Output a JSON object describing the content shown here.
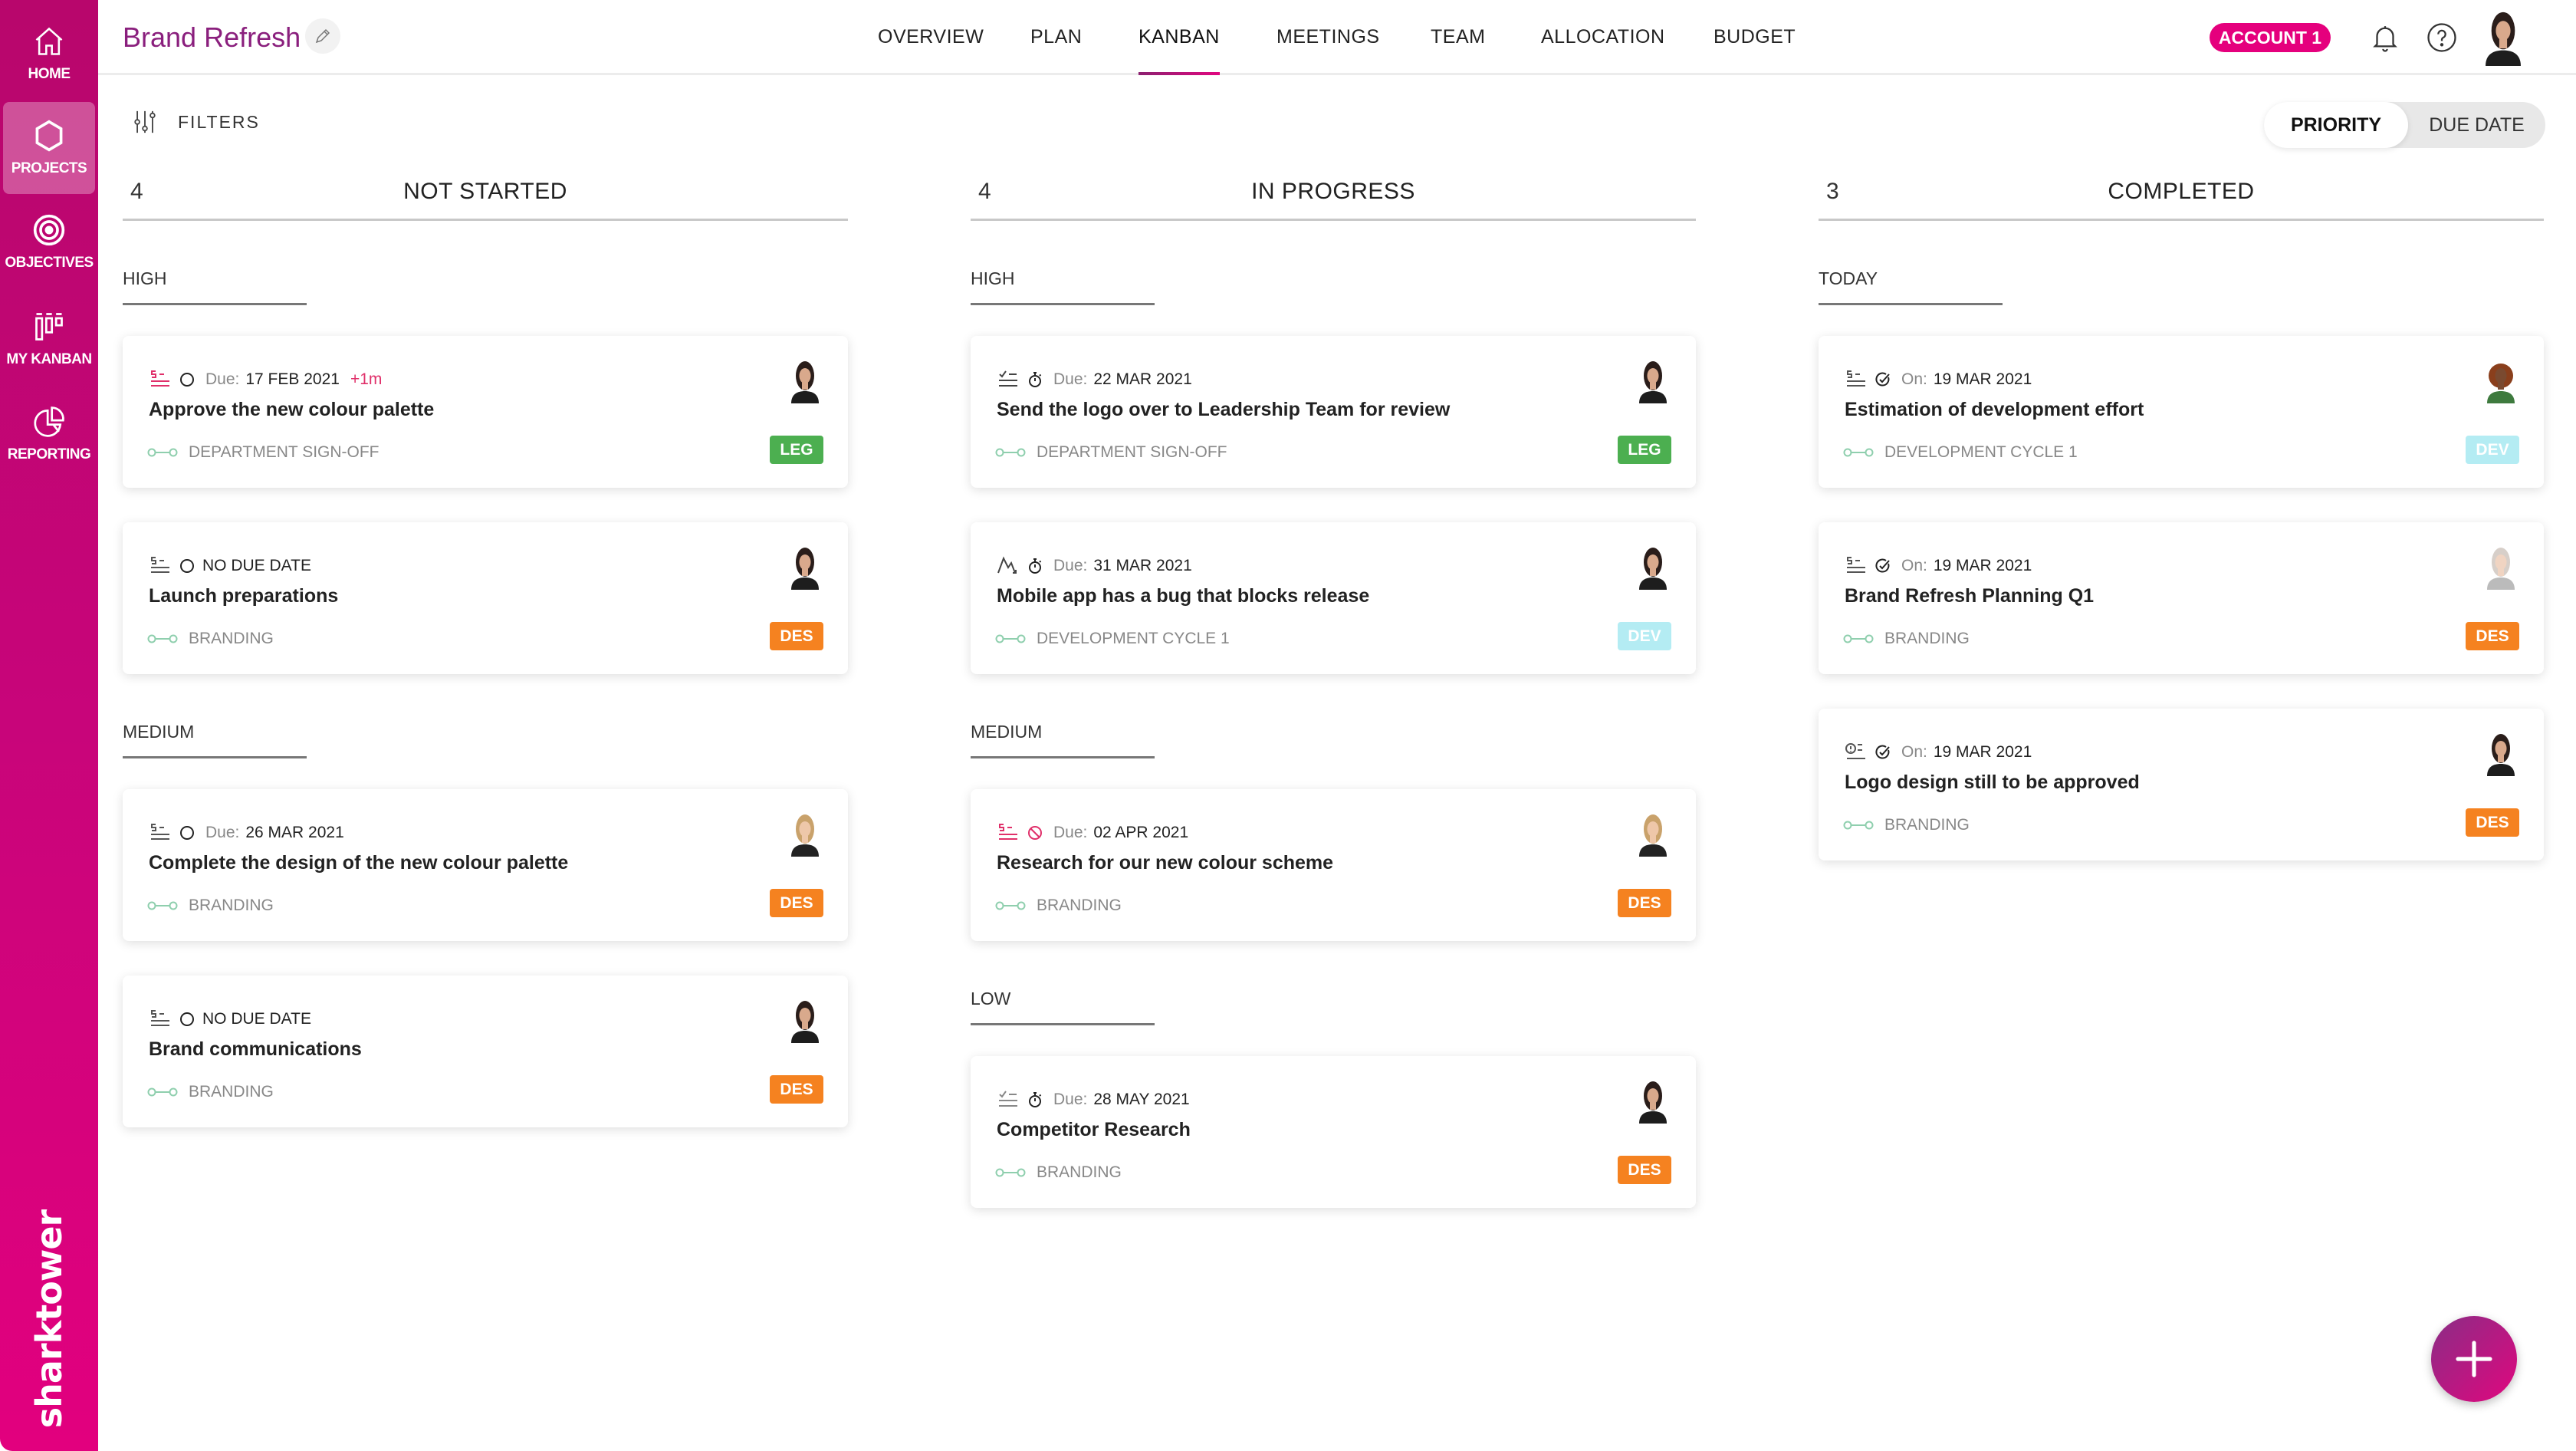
{
  "sidebar": {
    "items": [
      {
        "label": "HOME",
        "icon": "home-icon",
        "active": false
      },
      {
        "label": "PROJECTS",
        "icon": "hexagon-icon",
        "active": true
      },
      {
        "label": "OBJECTIVES",
        "icon": "target-icon",
        "active": false
      },
      {
        "label": "MY KANBAN",
        "icon": "kanban-icon",
        "active": false
      },
      {
        "label": "REPORTING",
        "icon": "pie-chart-icon",
        "active": false
      }
    ],
    "logo": "sharktower"
  },
  "header": {
    "title": "Brand Refresh",
    "nav": [
      "OVERVIEW",
      "PLAN",
      "KANBAN",
      "MEETINGS",
      "TEAM",
      "ALLOCATION",
      "BUDGET"
    ],
    "active_nav": "KANBAN",
    "account": "ACCOUNT 1"
  },
  "toolbar": {
    "filters": "FILTERS",
    "sort_options": [
      "PRIORITY",
      "DUE DATE"
    ],
    "selected_sort": "PRIORITY"
  },
  "colors": {
    "accent": "#e5007d",
    "leg": "#4caf50",
    "des": "#f58220",
    "dev": "#b4ecf3",
    "high_priority": "#e0306a"
  },
  "columns": [
    {
      "count": "4",
      "title": "NOT STARTED",
      "groups": [
        {
          "label": "HIGH",
          "cards": [
            {
              "type_icon": "priority-lines-icon",
              "type_color": "#e0306a",
              "status_icon": "circle-icon",
              "date_label": "Due:",
              "date": "17 FEB 2021",
              "overdue": "+1m",
              "title": "Approve the new colour palette",
              "project": "DEPARTMENT SIGN-OFF",
              "tag": "LEG",
              "tag_color": "#4caf50",
              "avatar": "dark"
            },
            {
              "type_icon": "priority-lines-icon",
              "type_color": "#555",
              "status_icon": "circle-icon",
              "date_label": "",
              "date": "NO DUE DATE",
              "title": "Launch preparations",
              "project": "BRANDING",
              "tag": "DES",
              "tag_color": "#f58220",
              "avatar": "dark"
            }
          ]
        },
        {
          "label": "MEDIUM",
          "cards": [
            {
              "type_icon": "priority-lines-icon",
              "type_color": "#555",
              "status_icon": "circle-icon",
              "date_label": "Due:",
              "date": "26 MAR 2021",
              "title": "Complete the design of the new colour palette",
              "project": "BRANDING",
              "tag": "DES",
              "tag_color": "#f58220",
              "avatar": "blonde"
            },
            {
              "type_icon": "priority-lines-icon",
              "type_color": "#555",
              "status_icon": "circle-icon",
              "date_label": "",
              "date": "NO DUE DATE",
              "title": "Brand communications",
              "project": "BRANDING",
              "tag": "DES",
              "tag_color": "#f58220",
              "avatar": "dark"
            }
          ]
        }
      ]
    },
    {
      "count": "4",
      "title": "IN PROGRESS",
      "groups": [
        {
          "label": "HIGH",
          "cards": [
            {
              "type_icon": "checklist-icon",
              "type_color": "#444",
              "status_icon": "stopwatch-icon",
              "date_label": "Due:",
              "date": "22 MAR 2021",
              "title": "Send the logo over to Leadership Team for review",
              "project": "DEPARTMENT SIGN-OFF",
              "tag": "LEG",
              "tag_color": "#4caf50",
              "avatar": "dark"
            },
            {
              "type_icon": "bug-trend-icon",
              "type_color": "#444",
              "status_icon": "stopwatch-icon",
              "date_label": "Due:",
              "date": "31 MAR 2021",
              "title": "Mobile app has a bug that blocks release",
              "project": "DEVELOPMENT CYCLE 1",
              "tag": "DEV",
              "tag_color": "#b4ecf3",
              "avatar": "dark"
            }
          ]
        },
        {
          "label": "MEDIUM",
          "cards": [
            {
              "type_icon": "priority-lines-icon",
              "type_color": "#e0306a",
              "status_icon": "blocked-icon",
              "date_label": "Due:",
              "date": "02 APR 2021",
              "title": "Research for our new colour scheme",
              "project": "BRANDING",
              "tag": "DES",
              "tag_color": "#f58220",
              "avatar": "blonde"
            }
          ]
        },
        {
          "label": "LOW",
          "cards": [
            {
              "type_icon": "checklist-icon",
              "type_color": "#888",
              "status_icon": "stopwatch-icon",
              "date_label": "Due:",
              "date": "28 MAY 2021",
              "title": "Competitor Research",
              "project": "BRANDING",
              "tag": "DES",
              "tag_color": "#f58220",
              "avatar": "dark"
            }
          ]
        }
      ]
    },
    {
      "count": "3",
      "title": "COMPLETED",
      "groups": [
        {
          "label": "TODAY",
          "cards": [
            {
              "type_icon": "priority-lines-icon",
              "type_color": "#555",
              "status_icon": "check-circle-icon",
              "date_label": "On:",
              "date": "19 MAR 2021",
              "title": "Estimation of development effort",
              "project": "DEVELOPMENT CYCLE 1",
              "tag": "DEV",
              "tag_color": "#b4ecf3",
              "avatar": "curly"
            },
            {
              "type_icon": "priority-lines-icon",
              "type_color": "#555",
              "status_icon": "check-circle-icon",
              "date_label": "On:",
              "date": "19 MAR 2021",
              "title": "Brand Refresh Planning Q1",
              "project": "BRANDING",
              "tag": "DES",
              "tag_color": "#f58220",
              "avatar": "light"
            },
            {
              "type_icon": "alert-lines-icon",
              "type_color": "#555",
              "status_icon": "check-circle-icon",
              "date_label": "On:",
              "date": "19 MAR 2021",
              "title": "Logo design still to be approved",
              "project": "BRANDING",
              "tag": "DES",
              "tag_color": "#f58220",
              "avatar": "dark"
            }
          ]
        }
      ]
    }
  ]
}
